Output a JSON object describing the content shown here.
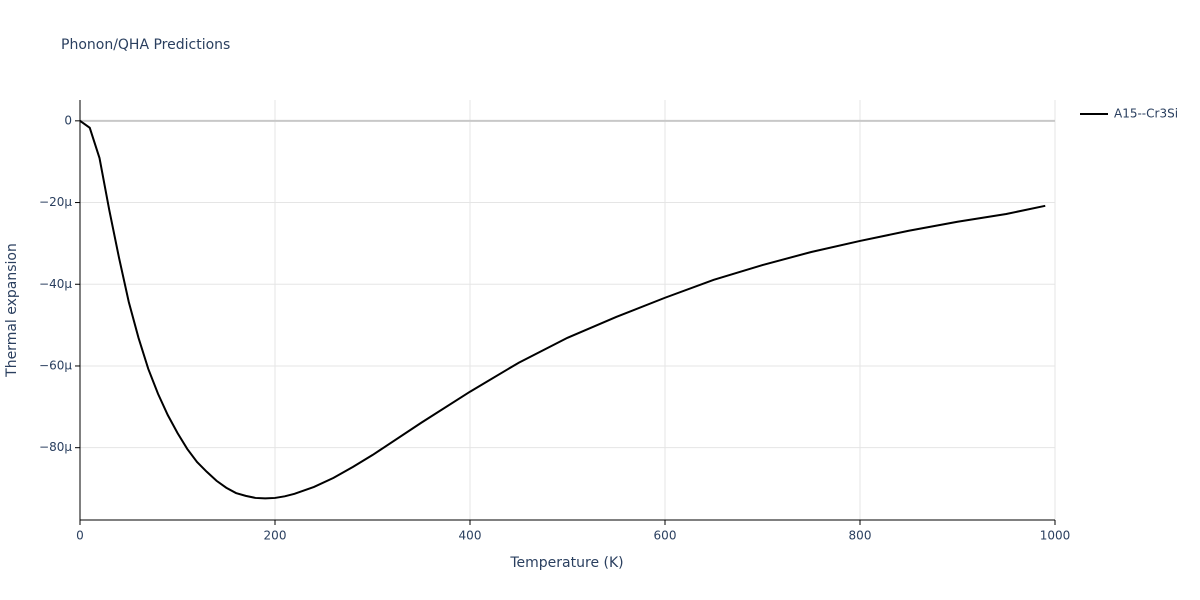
{
  "chart_data": {
    "type": "line",
    "title": "Phonon/QHA Predictions",
    "x_label": "Temperature (K)",
    "y_label": "Thermal expansion",
    "xlim": [
      0,
      1000
    ],
    "xticks": [
      0,
      200,
      400,
      600,
      800,
      1000
    ],
    "ylim": [
      -9.77e-05,
      5.1e-06
    ],
    "yticks": [
      {
        "value": -8e-05,
        "label": "−80μ"
      },
      {
        "value": -6e-05,
        "label": "−60μ"
      },
      {
        "value": -4e-05,
        "label": "−40μ"
      },
      {
        "value": -2e-05,
        "label": "−20μ"
      },
      0
    ],
    "grid": true,
    "legend": "right",
    "x": [
      0,
      10,
      20,
      30,
      40,
      50,
      60,
      70,
      80,
      90,
      100,
      110,
      120,
      130,
      140,
      150,
      160,
      170,
      180,
      190,
      200,
      210,
      220,
      240,
      260,
      280,
      300,
      350,
      400,
      450,
      500,
      550,
      600,
      650,
      700,
      750,
      800,
      850,
      900,
      950,
      990
    ],
    "series": [
      {
        "name": "A15--Cr3Si",
        "color": "#000000",
        "values": [
          0,
          -1.7e-06,
          -9.1e-06,
          -2.18e-05,
          -3.35e-05,
          -4.43e-05,
          -5.31e-05,
          -6.07e-05,
          -6.68e-05,
          -7.2e-05,
          -7.64e-05,
          -8.03e-05,
          -8.35e-05,
          -8.59e-05,
          -8.81e-05,
          -8.98e-05,
          -9.11e-05,
          -9.18e-05,
          -9.23e-05,
          -9.24e-05,
          -9.23e-05,
          -9.19e-05,
          -9.13e-05,
          -8.96e-05,
          -8.74e-05,
          -8.47e-05,
          -8.18e-05,
          -7.39e-05,
          -6.63e-05,
          -5.92e-05,
          -5.31e-05,
          -4.8e-05,
          -4.33e-05,
          -3.89e-05,
          -3.53e-05,
          -3.21e-05,
          -2.94e-05,
          -2.69e-05,
          -2.47e-05,
          -2.28e-05,
          -2.08e-05
        ]
      }
    ]
  }
}
